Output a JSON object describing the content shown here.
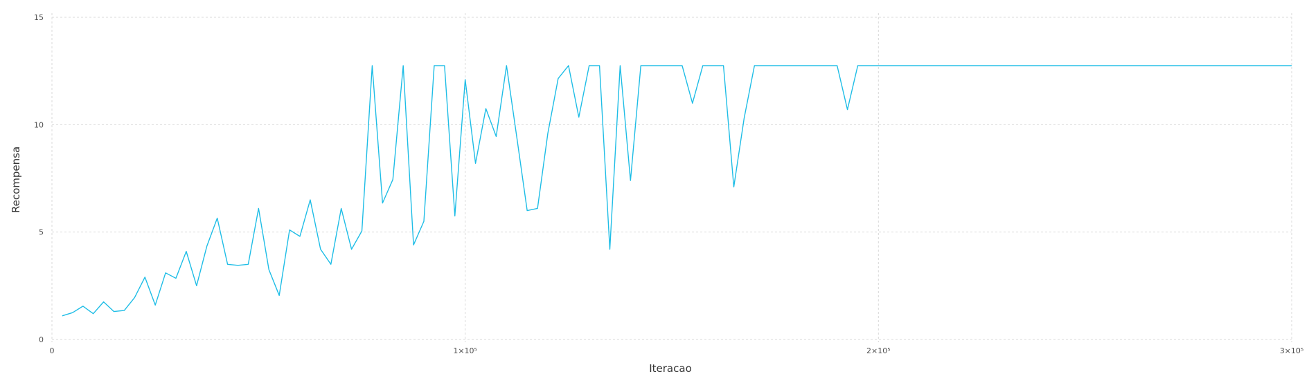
{
  "chart_data": {
    "type": "line",
    "title": "",
    "xlabel": "Iteracao",
    "ylabel": "Recompensa",
    "xlim": [
      0,
      300000
    ],
    "ylim": [
      0,
      15
    ],
    "grid": true,
    "x_ticks": [
      {
        "value": 0,
        "label": "0"
      },
      {
        "value": 100000,
        "label": "1×10⁵"
      },
      {
        "value": 200000,
        "label": "2×10⁵"
      },
      {
        "value": 300000,
        "label": "3×10⁵"
      }
    ],
    "y_ticks": [
      {
        "value": 0,
        "label": "0"
      },
      {
        "value": 5,
        "label": "5"
      },
      {
        "value": 10,
        "label": "10"
      },
      {
        "value": 15,
        "label": "15"
      }
    ],
    "series": [
      {
        "color": "#1ebde6",
        "x": [
          2500,
          5000,
          7500,
          10000,
          12500,
          15000,
          17500,
          20000,
          22500,
          25000,
          27500,
          30000,
          32500,
          35000,
          37500,
          40000,
          42500,
          45000,
          47500,
          50000,
          52500,
          55000,
          57500,
          60000,
          62500,
          65000,
          67500,
          70000,
          72500,
          75000,
          77500,
          80000,
          82500,
          85000,
          87500,
          90000,
          92500,
          95000,
          97500,
          100000,
          102500,
          105000,
          107500,
          110000,
          112500,
          115000,
          117500,
          120000,
          122500,
          125000,
          127500,
          130000,
          132500,
          135000,
          137500,
          140000,
          142500,
          145000,
          147500,
          150000,
          152500,
          155000,
          157500,
          160000,
          162500,
          165000,
          167500,
          170000,
          172500,
          175000,
          177500,
          180000,
          182500,
          185000,
          187500,
          190000,
          192500,
          195000,
          197500,
          200000,
          300000
        ],
        "y": [
          1.1,
          1.25,
          1.55,
          1.2,
          1.75,
          1.3,
          1.35,
          1.95,
          2.9,
          1.6,
          3.1,
          2.85,
          4.1,
          2.5,
          4.35,
          5.65,
          3.5,
          3.45,
          3.5,
          6.1,
          3.25,
          2.05,
          5.1,
          4.8,
          6.5,
          4.2,
          3.5,
          6.1,
          4.2,
          5.05,
          12.75,
          6.35,
          7.45,
          12.75,
          4.4,
          5.5,
          12.75,
          12.75,
          5.75,
          12.1,
          8.2,
          10.75,
          9.45,
          12.75,
          9.4,
          6.0,
          6.1,
          9.6,
          12.15,
          12.75,
          10.35,
          12.75,
          12.75,
          4.2,
          12.75,
          7.4,
          12.75,
          12.75,
          12.75,
          12.75,
          12.75,
          11.0,
          12.75,
          12.75,
          12.75,
          7.1,
          10.3,
          12.75,
          12.75,
          12.75,
          12.75,
          12.75,
          12.75,
          12.75,
          12.75,
          12.75,
          10.7,
          12.75,
          12.75,
          12.75,
          12.75
        ]
      }
    ]
  }
}
